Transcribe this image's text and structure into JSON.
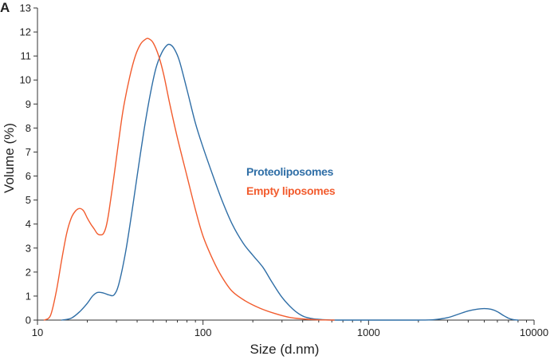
{
  "panel_label": "A",
  "chart_data": {
    "type": "line",
    "title": "",
    "xlabel": "Size (d.nm)",
    "ylabel": "Volume (%)",
    "xscale": "log",
    "xlim": [
      10,
      10000
    ],
    "ylim": [
      0,
      13
    ],
    "x_ticks": [
      10,
      100,
      1000,
      10000
    ],
    "x_tick_labels": [
      "10",
      "100",
      "1000",
      "10000"
    ],
    "y_ticks": [
      0,
      1,
      2,
      3,
      4,
      5,
      6,
      7,
      8,
      9,
      10,
      11,
      12,
      13
    ],
    "y_tick_labels": [
      "0",
      "1",
      "2",
      "3",
      "4",
      "5",
      "6",
      "7",
      "8",
      "9",
      "10",
      "11",
      "12",
      "13"
    ],
    "grid": false,
    "legend": {
      "placement": "center-right",
      "entries": [
        "Proteoliposomes",
        "Empty liposomes"
      ]
    },
    "series": [
      {
        "name": "Proteoliposomes",
        "color": "#2f6ea6",
        "x": [
          14,
          16,
          18,
          20,
          21.5,
          23,
          25,
          27,
          29,
          31,
          34,
          37,
          40,
          44,
          48,
          52,
          56,
          60,
          63,
          67,
          72,
          80,
          90,
          100,
          115,
          130,
          150,
          175,
          200,
          230,
          260,
          300,
          350,
          400,
          450,
          500,
          560,
          650,
          800,
          1000,
          1500,
          2000,
          2500,
          3000,
          3500,
          4000,
          4500,
          5000,
          5500,
          6000,
          6500,
          7000,
          7500,
          8000
        ],
        "y": [
          0,
          0.08,
          0.35,
          0.7,
          1.0,
          1.15,
          1.13,
          1.05,
          1.05,
          1.5,
          2.8,
          4.4,
          6.0,
          7.9,
          9.4,
          10.5,
          11.1,
          11.42,
          11.48,
          11.3,
          10.8,
          9.6,
          8.2,
          7.2,
          6.0,
          5.0,
          4.0,
          3.2,
          2.7,
          2.2,
          1.6,
          0.95,
          0.45,
          0.17,
          0.07,
          0.03,
          0.01,
          0,
          0,
          0,
          0,
          0,
          0.02,
          0.1,
          0.25,
          0.38,
          0.45,
          0.48,
          0.45,
          0.35,
          0.2,
          0.08,
          0.02,
          0
        ]
      },
      {
        "name": "Empty liposomes",
        "color": "#f25c2e",
        "x": [
          11,
          12,
          13,
          14,
          15,
          16,
          17,
          18,
          19,
          20,
          21,
          22,
          23,
          24,
          25,
          26,
          27,
          29,
          31,
          33,
          36,
          39,
          42,
          45,
          47,
          50,
          54,
          58,
          63,
          70,
          80,
          90,
          100,
          115,
          130,
          150,
          180,
          220,
          270,
          330,
          400,
          480,
          550,
          620
        ],
        "y": [
          0,
          0.2,
          1.2,
          2.5,
          3.6,
          4.25,
          4.55,
          4.65,
          4.55,
          4.25,
          4.0,
          3.8,
          3.6,
          3.55,
          3.6,
          3.9,
          4.5,
          6.0,
          7.5,
          8.8,
          10.1,
          11.0,
          11.5,
          11.7,
          11.72,
          11.55,
          11.0,
          10.2,
          9.0,
          7.6,
          6.0,
          4.6,
          3.5,
          2.5,
          1.8,
          1.2,
          0.8,
          0.5,
          0.28,
          0.12,
          0.05,
          0.015,
          0.005,
          0
        ]
      }
    ]
  }
}
